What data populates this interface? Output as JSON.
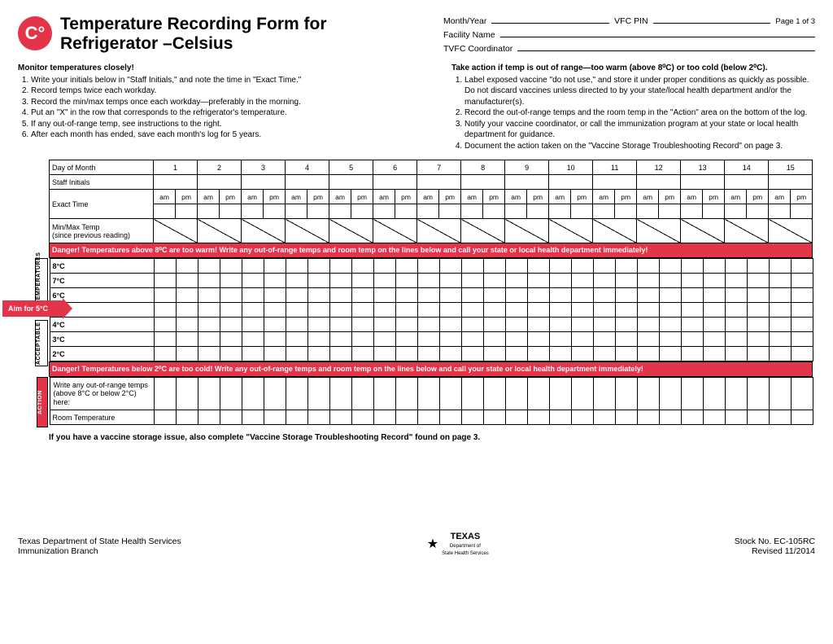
{
  "badge": "C°",
  "title": "Temperature Recording Form for Refrigerator –Celsius",
  "page_label": "Page 1 of 3",
  "meta": {
    "month_year": "Month/Year",
    "vfcpin": "VFC PIN",
    "facility_name": "Facility Name",
    "tvfc_coord": "TVFC Coordinator"
  },
  "left_instr_heading": "Monitor temperatures closely!",
  "left_instr": [
    "Write your initials below in \"Staff Initials,\" and note the time in \"Exact Time.\"",
    "Record temps twice each workday.",
    "Record the min/max temps once each workday—preferably in the morning.",
    "Put an \"X\" in the row that corresponds to the refrigerator's temperature.",
    "If any out-of-range temp, see instructions to the right.",
    "After each month has ended, save each month's log for 5 years."
  ],
  "right_instr_heading": "Take action if temp is out of range—too warm (above 8⁰C) or too cold (below 2⁰C).",
  "right_instr": [
    "Label exposed vaccine \"do not use,\" and store it under proper conditions as quickly as possible. Do not discard vaccines unless directed to by your state/local health department and/or the manufacturer(s).",
    "Record the out-of-range temps and the room temp in the \"Action\" area on the bottom of the log.",
    "Notify your vaccine coordinator, or call the immunization program at your state or local health department for guidance.",
    "Document the action taken on the \"Vaccine Storage Troubleshooting Record\" on page 3."
  ],
  "grid": {
    "days": [
      "1",
      "2",
      "3",
      "4",
      "5",
      "6",
      "7",
      "8",
      "9",
      "10",
      "11",
      "12",
      "13",
      "14",
      "15"
    ],
    "row_day": "Day of Month",
    "row_initials": "Staff Initials",
    "row_time": "Exact Time",
    "am": "am",
    "pm": "pm",
    "row_minmax": "Min/Max Temp\n(since previous reading)",
    "danger_warm": "Danger! Temperatures above 8⁰C are too warm! Write any out-of-range temps and room temp on the lines below and call your state or local health department immediately!",
    "danger_cold": "Danger! Temperatures below 2⁰C are too cold! Write any out-of-range temps and room temp on the lines below and call your state or local health department immediately!",
    "temps": [
      "8°C",
      "7°C",
      "6°C",
      "5°C",
      "4°C",
      "3°C",
      "2°C"
    ],
    "side_temperatures": "TEMPERATURES",
    "side_acceptable": "ACCEPTABLE",
    "side_action": "ACTION",
    "aim": "Aim for 5°C",
    "action_write": "Write any out-of-range temps (above 8°C or below 2°C) here:",
    "action_room": "Room Temperature"
  },
  "footnote": "If you have a vaccine storage issue, also complete \"Vaccine Storage Troubleshooting Record\" found on page 3.",
  "footer": {
    "dept": "Texas Department of State Health Services",
    "branch": "Immunization Branch",
    "logo_text": "TEXAS",
    "logo_sub": "Department of\nState Health Services",
    "stock": "Stock No. EC-105RC",
    "revised": "Revised 11/2014"
  },
  "colors": {
    "brand": "#e4344a"
  }
}
